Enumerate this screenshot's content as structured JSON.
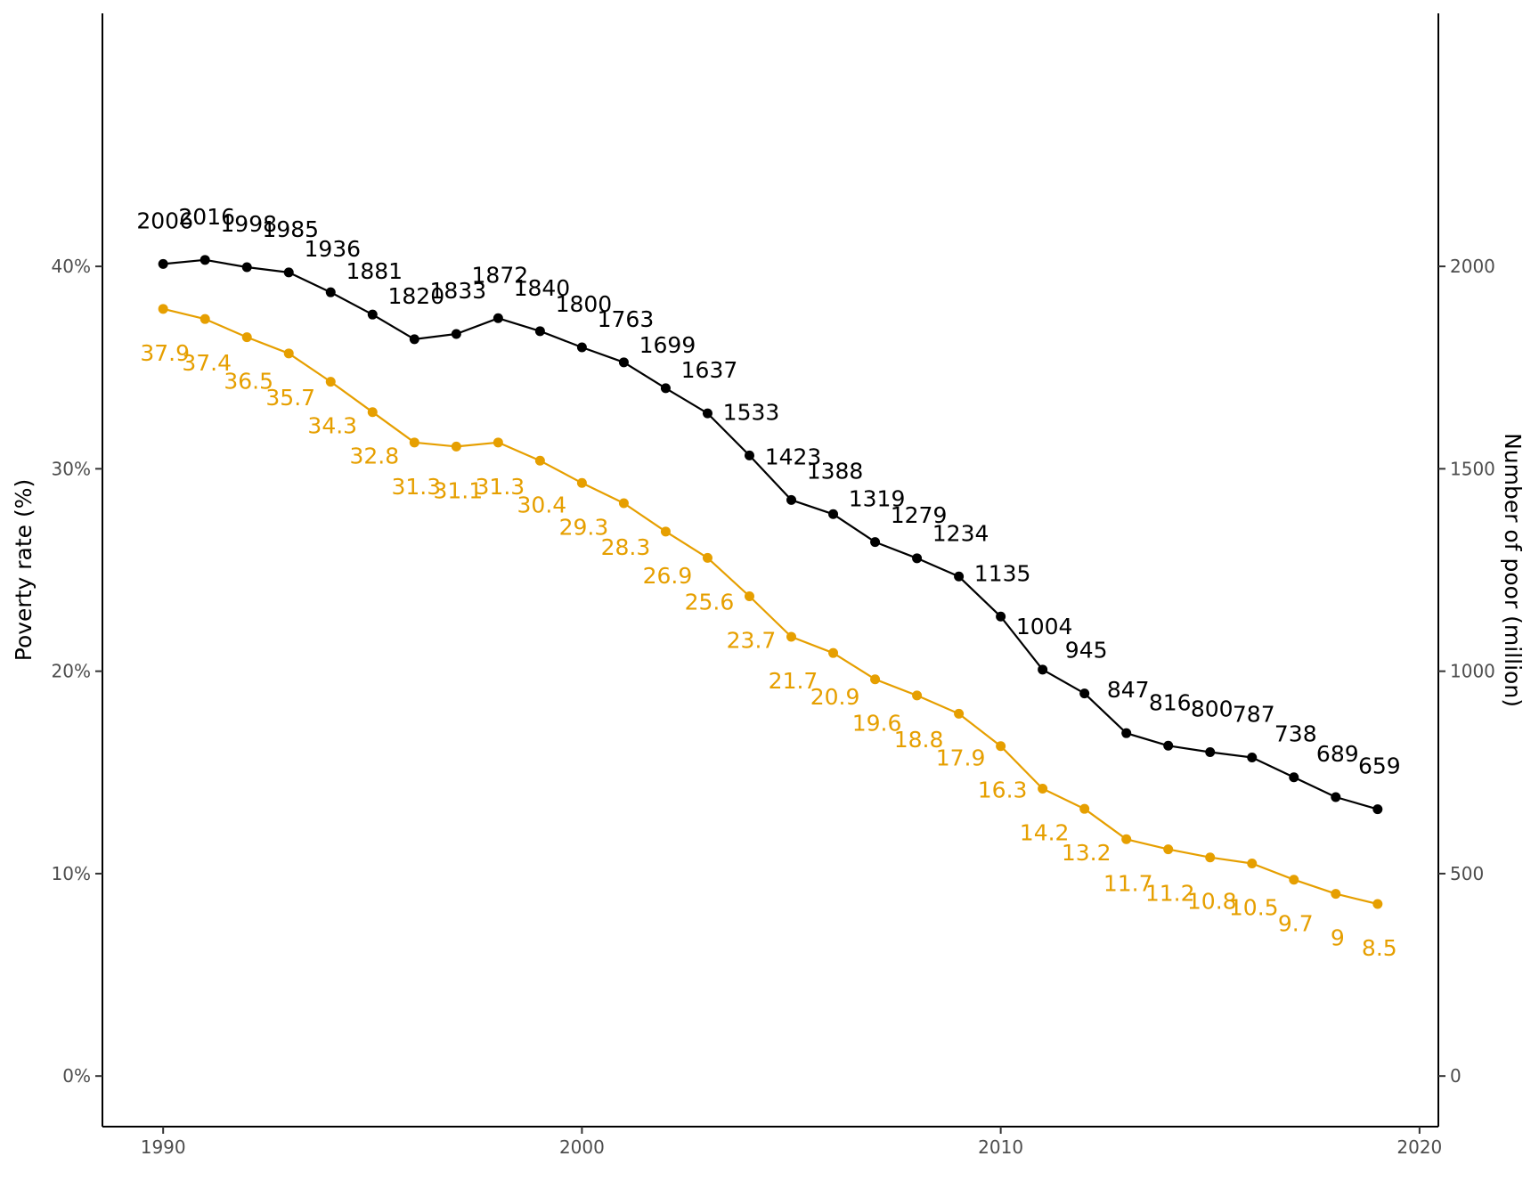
{
  "colors": {
    "rate": "#E69F00",
    "poor": "#000000",
    "axis": "#000000",
    "tick_text": "#4d4d4d"
  },
  "chart_data": {
    "type": "line",
    "x": [
      1990,
      1991,
      1992,
      1993,
      1994,
      1995,
      1996,
      1997,
      1998,
      1999,
      2000,
      2001,
      2002,
      2003,
      2004,
      2005,
      2006,
      2007,
      2008,
      2009,
      2010,
      2011,
      2012,
      2013,
      2014,
      2015,
      2016,
      2017,
      2018,
      2019
    ],
    "series": [
      {
        "key": "rate",
        "axis": "left",
        "values": [
          37.9,
          37.4,
          36.5,
          35.7,
          34.3,
          32.8,
          31.3,
          31.1,
          31.3,
          30.4,
          29.3,
          28.3,
          26.9,
          25.6,
          23.7,
          21.7,
          20.9,
          19.6,
          18.8,
          17.9,
          16.3,
          14.2,
          13.2,
          11.7,
          11.2,
          10.8,
          10.5,
          9.7,
          9,
          8.5
        ],
        "labels": [
          "37.9",
          "37.4",
          "36.5",
          "35.7",
          "34.3",
          "32.8",
          "31.3",
          "31.1",
          "31.3",
          "30.4",
          "29.3",
          "28.3",
          "26.9",
          "25.6",
          "23.7",
          "21.7",
          "20.9",
          "19.6",
          "18.8",
          "17.9",
          "16.3",
          "14.2",
          "13.2",
          "11.7",
          "11.2",
          "10.8",
          "10.5",
          "9.7",
          "9",
          "8.5"
        ]
      },
      {
        "key": "poor",
        "axis": "right",
        "values": [
          2006,
          2016,
          1998,
          1985,
          1936,
          1881,
          1820,
          1833,
          1872,
          1840,
          1800,
          1763,
          1699,
          1637,
          1533,
          1423,
          1388,
          1319,
          1279,
          1234,
          1135,
          1004,
          945,
          847,
          816,
          800,
          787,
          738,
          689,
          659
        ],
        "labels": [
          "2006",
          "2016",
          "1998",
          "1985",
          "1936",
          "1881",
          "1820",
          "1833",
          "1872",
          "1840",
          "1800",
          "1763",
          "1699",
          "1637",
          "1533",
          "1423",
          "1388",
          "1319",
          "1279",
          "1234",
          "1135",
          "1004",
          "945",
          "847",
          "816",
          "800",
          "787",
          "738",
          "689",
          "659"
        ]
      }
    ],
    "xlim": [
      1988.55,
      2020.45
    ],
    "x_ticks": [
      1990,
      2000,
      2010,
      2020
    ],
    "x_tick_labels": [
      "1990",
      "2000",
      "2010",
      "2020"
    ],
    "ylim_left": [
      -2.5,
      52.5
    ],
    "y_ticks_left": [
      0,
      10,
      20,
      30,
      40
    ],
    "y_tick_labels_left": [
      "0%",
      "10%",
      "20%",
      "30%",
      "40%"
    ],
    "ylim_right": [
      -125,
      2625
    ],
    "y_ticks_right": [
      0,
      500,
      1000,
      1500,
      2000
    ],
    "y_tick_labels_right": [
      "0",
      "500",
      "1000",
      "1500",
      "2000"
    ],
    "ylabel_left": "Poverty rate (%)",
    "ylabel_right": "Number of poor (million)",
    "xlabel": "",
    "title": "",
    "grid": false,
    "legend": "none"
  }
}
